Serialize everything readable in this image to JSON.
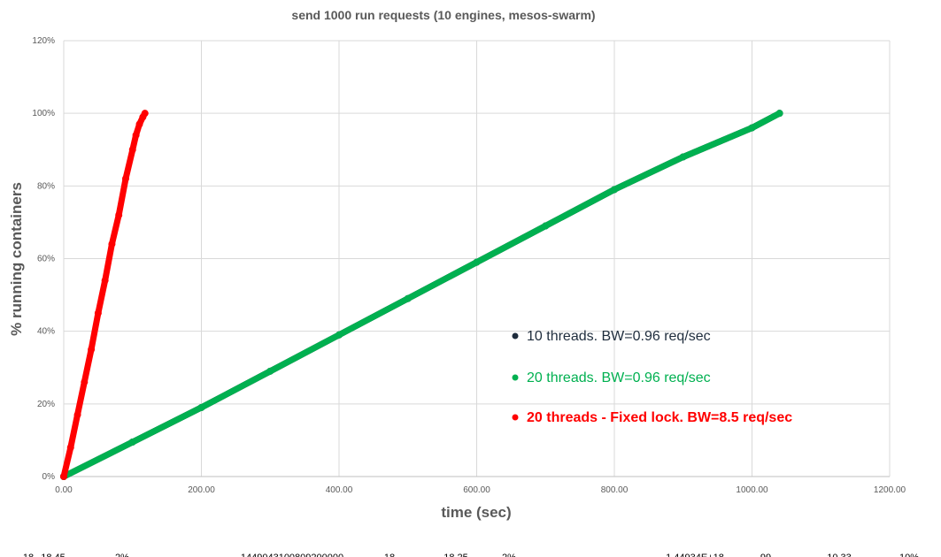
{
  "chart_data": {
    "type": "scatter",
    "title": "send 1000 run requests (10 engines, mesos-swarm)",
    "xlabel": "time (sec)",
    "ylabel": "% running containers",
    "xlim": [
      0,
      1200
    ],
    "ylim": [
      0,
      1.2
    ],
    "x_ticks": [
      "0.00",
      "200.00",
      "400.00",
      "600.00",
      "800.00",
      "1000.00",
      "1200.00"
    ],
    "y_ticks": [
      "0%",
      "20%",
      "40%",
      "60%",
      "80%",
      "100%",
      "120%"
    ],
    "grid": true,
    "legend_position": "inside-right",
    "series": [
      {
        "name": "10 threads.  BW=0.96 req/sec",
        "color": "#1f2d3d",
        "x": [
          0,
          100,
          200,
          300,
          400,
          500,
          600,
          700,
          800,
          900,
          1000,
          1040
        ],
        "y": [
          0,
          0.095,
          0.19,
          0.29,
          0.39,
          0.49,
          0.59,
          0.69,
          0.79,
          0.88,
          0.96,
          1.0
        ]
      },
      {
        "name": "20 threads. BW=0.96 req/sec",
        "color": "#00b050",
        "x": [
          0,
          100,
          200,
          300,
          400,
          500,
          600,
          700,
          800,
          900,
          1000,
          1040
        ],
        "y": [
          0,
          0.095,
          0.19,
          0.29,
          0.39,
          0.49,
          0.59,
          0.69,
          0.79,
          0.88,
          0.96,
          1.0
        ]
      },
      {
        "name": "20 threads - Fixed lock.  BW=8.5 req/sec",
        "color": "#ff0000",
        "x": [
          0,
          10,
          20,
          30,
          40,
          50,
          60,
          70,
          80,
          90,
          100,
          105,
          110,
          115,
          118
        ],
        "y": [
          0,
          0.08,
          0.17,
          0.26,
          0.35,
          0.45,
          0.54,
          0.64,
          0.72,
          0.82,
          0.9,
          0.94,
          0.97,
          0.99,
          1.0
        ]
      }
    ]
  },
  "bottom_strip": [
    "18",
    "18.45",
    "2%",
    "1449043100809200000",
    "18",
    "18.25",
    "2%",
    "1.44934E+18",
    "99",
    "10.33",
    "10%"
  ]
}
